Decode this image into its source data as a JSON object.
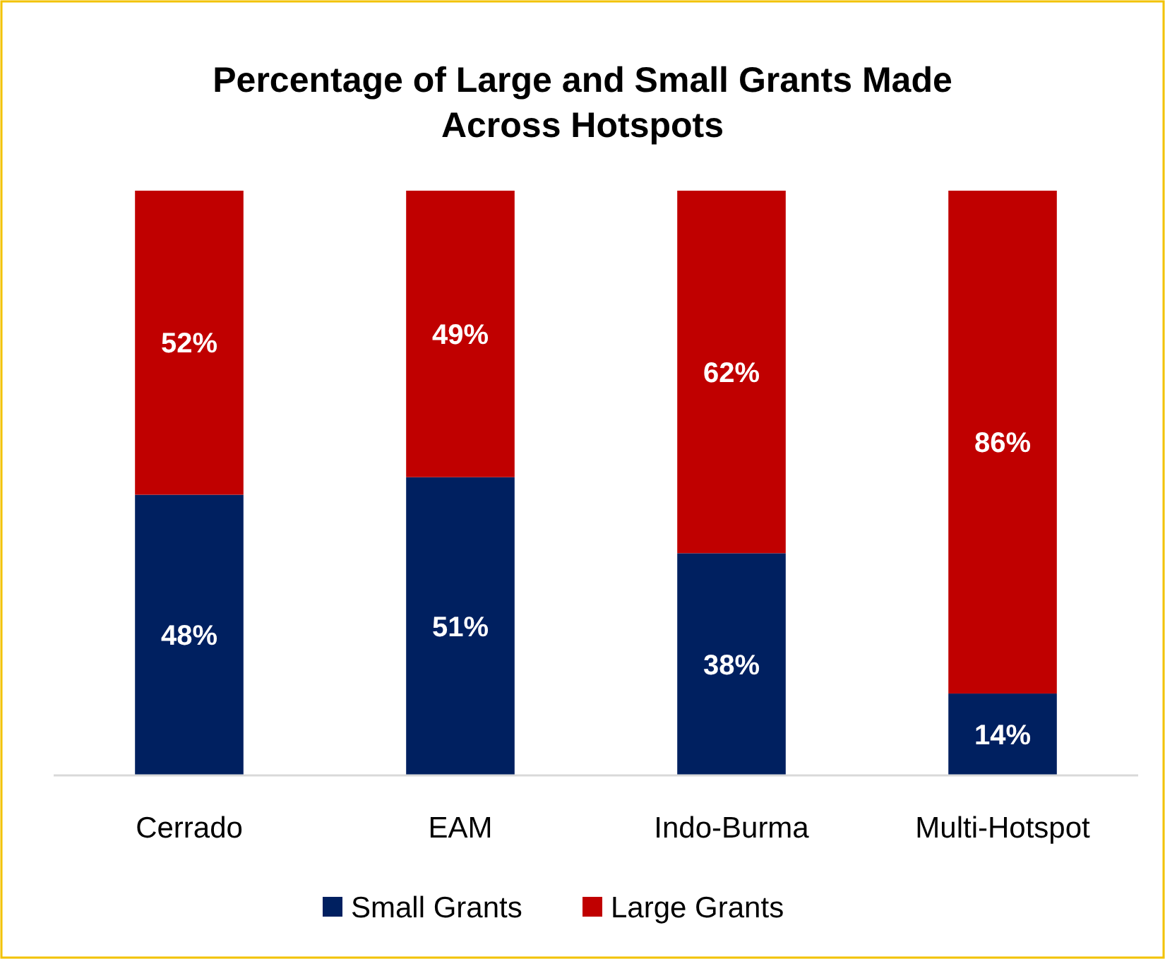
{
  "chart_data": {
    "type": "bar",
    "title": "Percentage of Large and Small Grants Made Across Hotspots",
    "categories": [
      "Cerrado",
      "EAM",
      "Indo-Burma",
      "Multi-Hotspot"
    ],
    "stacked": true,
    "legend": "bottom",
    "series": [
      {
        "name": "Small Grants",
        "color": "#002060",
        "values": [
          48,
          51,
          38,
          14
        ],
        "value_labels": [
          "48%",
          "51%",
          "38%",
          "14%"
        ]
      },
      {
        "name": "Large Grants",
        "color": "#c00000",
        "values": [
          52,
          49,
          62,
          86
        ],
        "value_labels": [
          "52%",
          "49%",
          "62%",
          "86%"
        ]
      }
    ]
  }
}
